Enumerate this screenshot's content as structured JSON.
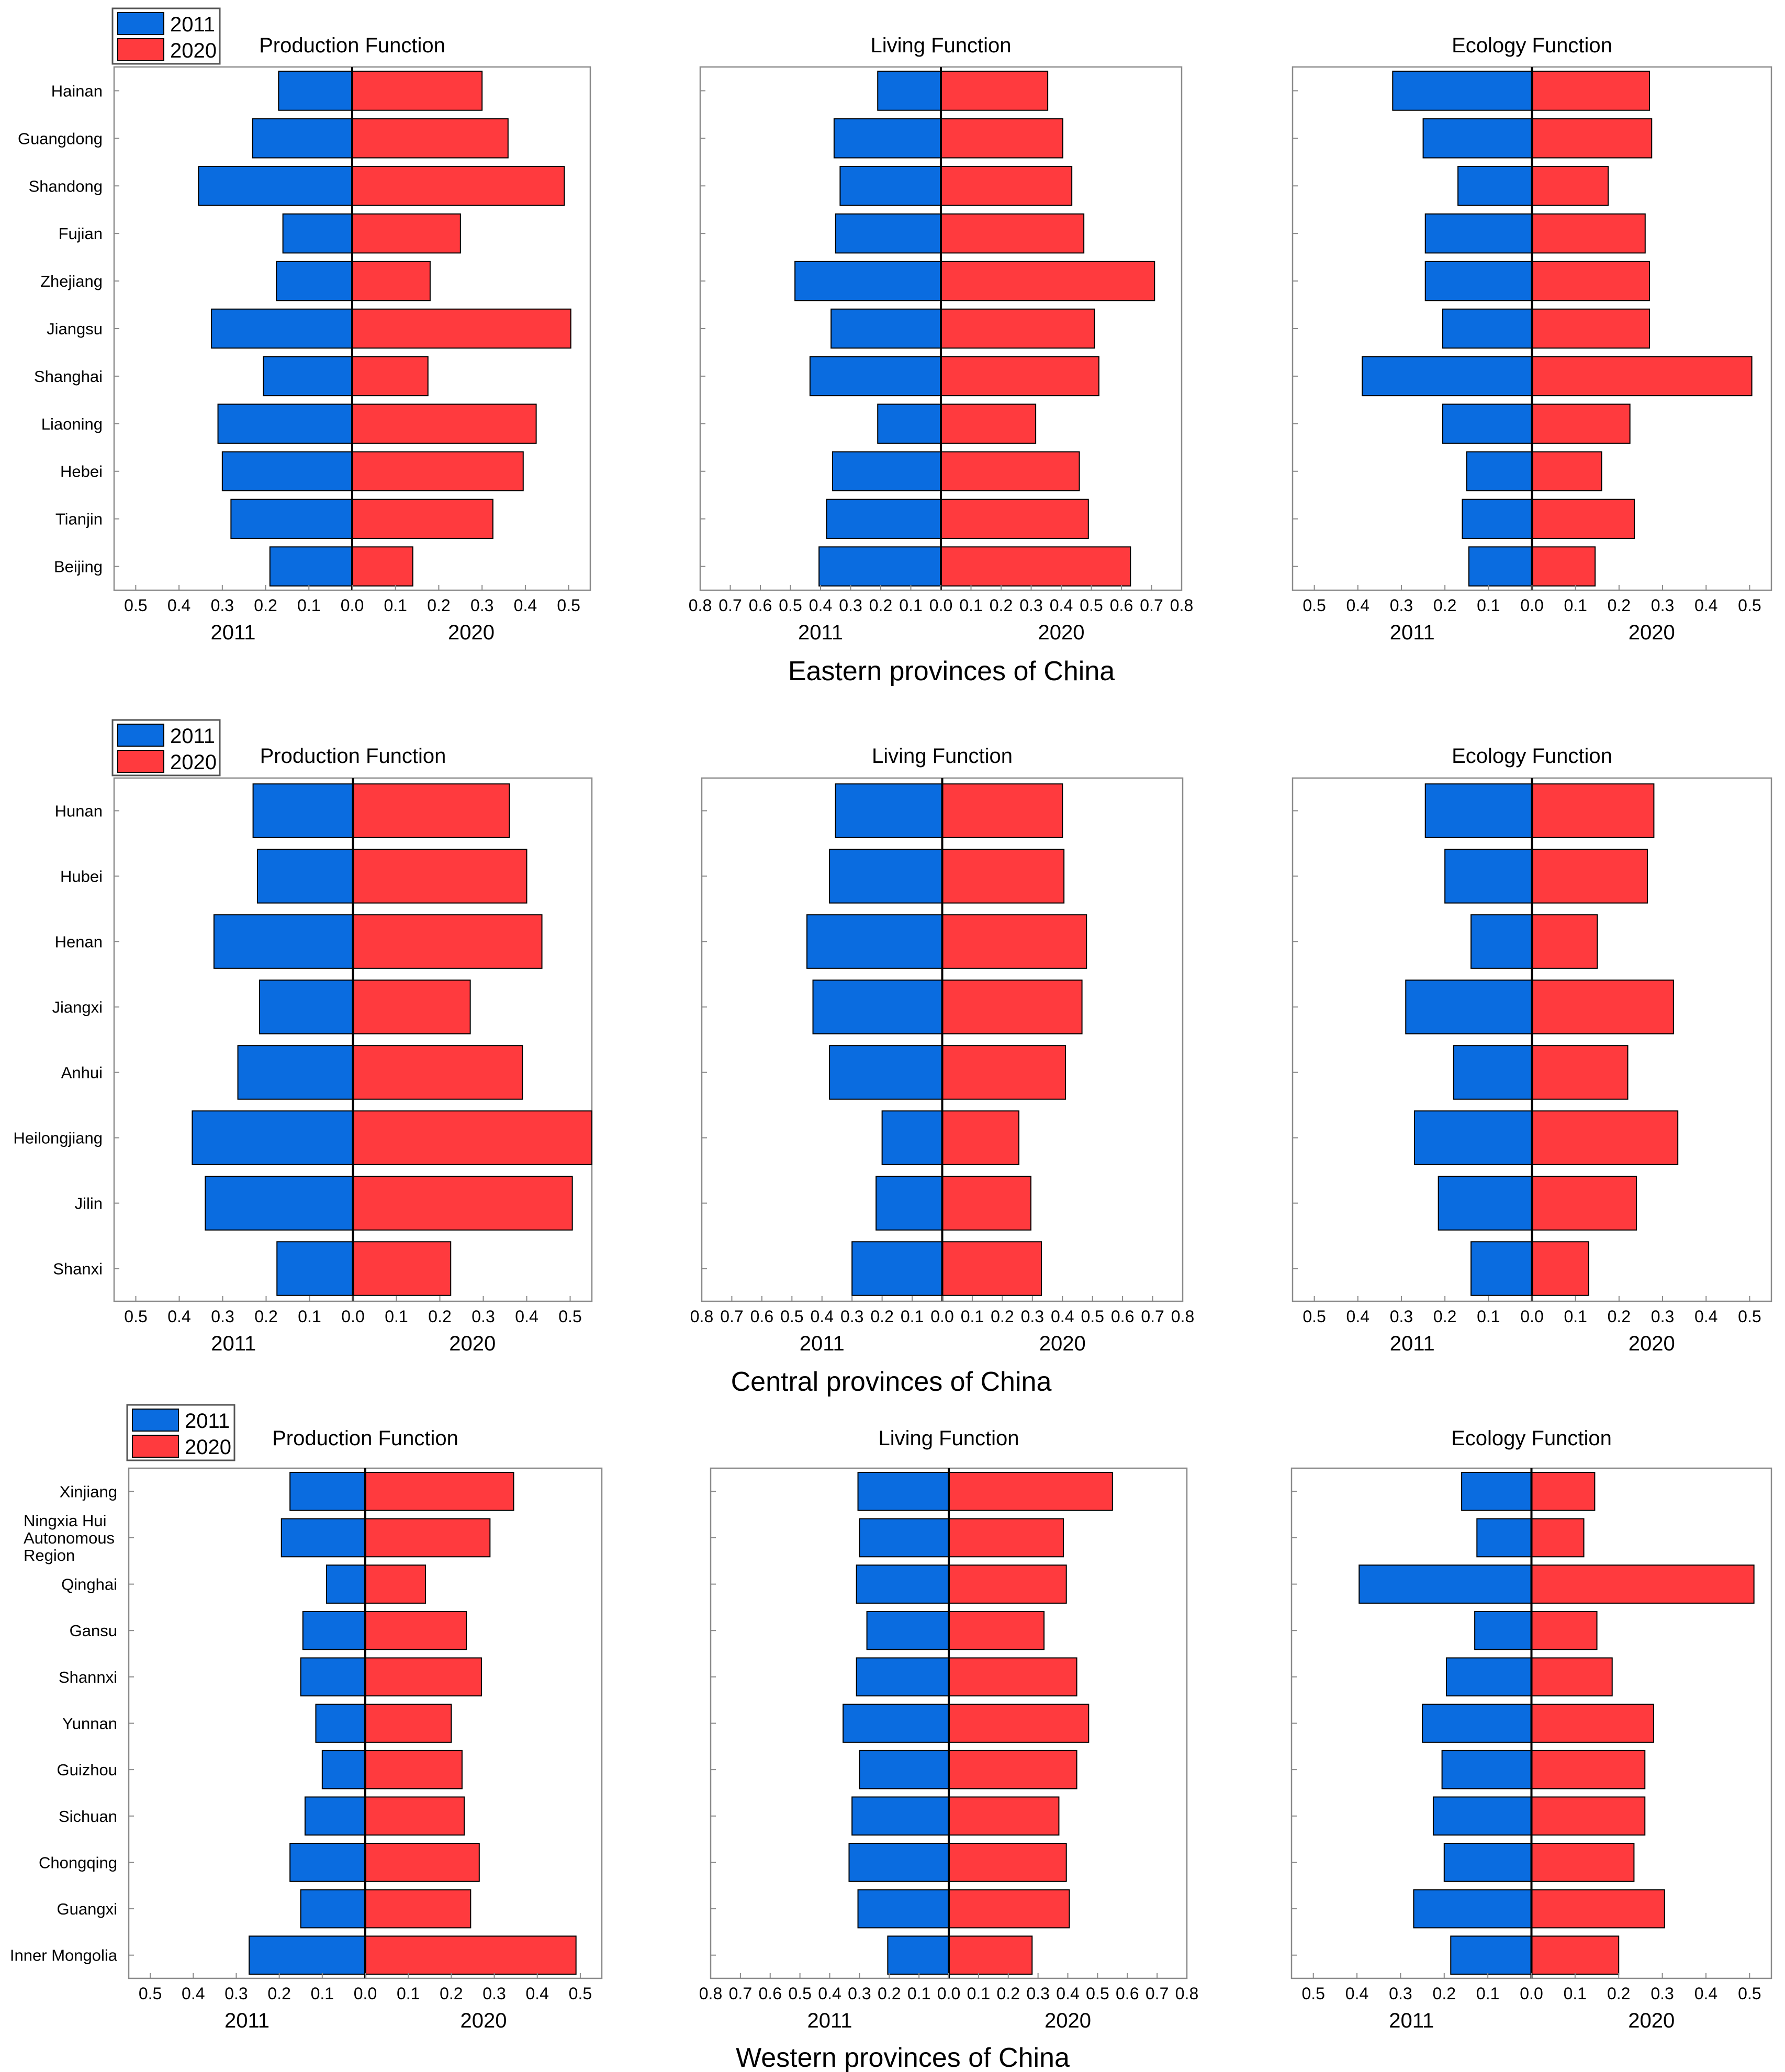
{
  "colors": {
    "y2011": "#0a6ce0",
    "y2020": "#ff3a3e",
    "edge": "#000000"
  },
  "legend": [
    "2011",
    "2020"
  ],
  "year_labels": {
    "left": "2011",
    "right": "2020"
  },
  "panel_titles": [
    "Production Function",
    "Living Function",
    "Ecology Function"
  ],
  "region_titles": [
    "Eastern provinces of China",
    "Central provinces of China",
    "Western provinces of China"
  ],
  "axis_ticks": {
    "production": [
      "0.5",
      "0.4",
      "0.3",
      "0.2",
      "0.1",
      "0.0",
      "0.1",
      "0.2",
      "0.3",
      "0.4",
      "0.5"
    ],
    "living": [
      "0.8",
      "0.7",
      "0.6",
      "0.5",
      "0.4",
      "0.3",
      "0.2",
      "0.1",
      "0.0",
      "0.1",
      "0.2",
      "0.3",
      "0.4",
      "0.5",
      "0.6",
      "0.7",
      "0.8"
    ],
    "ecology": [
      "0.5",
      "0.4",
      "0.3",
      "0.2",
      "0.1",
      "0.0",
      "0.1",
      "0.2",
      "0.3",
      "0.4",
      "0.5"
    ]
  },
  "chart_data": [
    {
      "type": "bar",
      "region": "Eastern provinces of China",
      "title": "Production Function",
      "xlim": [
        -0.55,
        0.55
      ],
      "xlabel_left": "2011",
      "xlabel_right": "2020",
      "categories": [
        "Hainan",
        "Guangdong",
        "Shandong",
        "Fujian",
        "Zhejiang",
        "Jiangsu",
        "Shanghai",
        "Liaoning",
        "Hebei",
        "Tianjin",
        "Beijing"
      ],
      "series": [
        {
          "name": "2011",
          "values": [
            0.17,
            0.23,
            0.355,
            0.16,
            0.175,
            0.325,
            0.205,
            0.31,
            0.3,
            0.28,
            0.19
          ]
        },
        {
          "name": "2020",
          "values": [
            0.3,
            0.36,
            0.49,
            0.25,
            0.18,
            0.505,
            0.175,
            0.425,
            0.395,
            0.325,
            0.14
          ]
        }
      ]
    },
    {
      "type": "bar",
      "region": "Eastern provinces of China",
      "title": "Living Function",
      "xlim": [
        -0.8,
        0.8
      ],
      "xlabel_left": "2011",
      "xlabel_right": "2020",
      "categories": [
        "Hainan",
        "Guangdong",
        "Shandong",
        "Fujian",
        "Zhejiang",
        "Jiangsu",
        "Shanghai",
        "Liaoning",
        "Hebei",
        "Tianjin",
        "Beijing"
      ],
      "series": [
        {
          "name": "2011",
          "values": [
            0.21,
            0.355,
            0.335,
            0.35,
            0.485,
            0.365,
            0.435,
            0.21,
            0.36,
            0.38,
            0.405
          ]
        },
        {
          "name": "2020",
          "values": [
            0.355,
            0.405,
            0.435,
            0.475,
            0.71,
            0.51,
            0.525,
            0.315,
            0.46,
            0.49,
            0.63
          ]
        }
      ]
    },
    {
      "type": "bar",
      "region": "Eastern provinces of China",
      "title": "Ecology Function",
      "xlim": [
        -0.55,
        0.55
      ],
      "xlabel_left": "2011",
      "xlabel_right": "2020",
      "categories": [
        "Hainan",
        "Guangdong",
        "Shandong",
        "Fujian",
        "Zhejiang",
        "Jiangsu",
        "Shanghai",
        "Liaoning",
        "Hebei",
        "Tianjin",
        "Beijing"
      ],
      "series": [
        {
          "name": "2011",
          "values": [
            0.32,
            0.25,
            0.17,
            0.245,
            0.245,
            0.205,
            0.39,
            0.205,
            0.15,
            0.16,
            0.145
          ]
        },
        {
          "name": "2020",
          "values": [
            0.27,
            0.275,
            0.175,
            0.26,
            0.27,
            0.27,
            0.505,
            0.225,
            0.16,
            0.235,
            0.145
          ]
        }
      ]
    },
    {
      "type": "bar",
      "region": "Central provinces of China",
      "title": "Production Function",
      "xlim": [
        -0.55,
        0.55
      ],
      "xlabel_left": "2011",
      "xlabel_right": "2020",
      "categories": [
        "Hunan",
        "Hubei",
        "Henan",
        "Jiangxi",
        "Anhui",
        "Heilongjiang",
        "Jilin",
        "Shanxi"
      ],
      "series": [
        {
          "name": "2011",
          "values": [
            0.23,
            0.22,
            0.32,
            0.215,
            0.265,
            0.37,
            0.34,
            0.175
          ]
        },
        {
          "name": "2020",
          "values": [
            0.36,
            0.4,
            0.435,
            0.27,
            0.39,
            0.555,
            0.505,
            0.225
          ]
        }
      ]
    },
    {
      "type": "bar",
      "region": "Central provinces of China",
      "title": "Living Function",
      "xlim": [
        -0.8,
        0.8
      ],
      "xlabel_left": "2011",
      "xlabel_right": "2020",
      "categories": [
        "Hunan",
        "Hubei",
        "Henan",
        "Jiangxi",
        "Anhui",
        "Heilongjiang",
        "Jilin",
        "Shanxi"
      ],
      "series": [
        {
          "name": "2011",
          "values": [
            0.355,
            0.375,
            0.45,
            0.43,
            0.375,
            0.2,
            0.22,
            0.3
          ]
        },
        {
          "name": "2020",
          "values": [
            0.4,
            0.405,
            0.48,
            0.465,
            0.41,
            0.255,
            0.295,
            0.33
          ]
        }
      ]
    },
    {
      "type": "bar",
      "region": "Central provinces of China",
      "title": "Ecology Function",
      "xlim": [
        -0.55,
        0.55
      ],
      "xlabel_left": "2011",
      "xlabel_right": "2020",
      "categories": [
        "Hunan",
        "Hubei",
        "Henan",
        "Jiangxi",
        "Anhui",
        "Heilongjiang",
        "Jilin",
        "Shanxi"
      ],
      "series": [
        {
          "name": "2011",
          "values": [
            0.245,
            0.2,
            0.14,
            0.29,
            0.18,
            0.27,
            0.215,
            0.14
          ]
        },
        {
          "name": "2020",
          "values": [
            0.28,
            0.265,
            0.15,
            0.325,
            0.22,
            0.335,
            0.24,
            0.13
          ]
        }
      ]
    },
    {
      "type": "bar",
      "region": "Western provinces of China",
      "title": "Production Function",
      "xlim": [
        -0.55,
        0.55
      ],
      "xlabel_left": "2011",
      "xlabel_right": "2020",
      "categories": [
        "Xinjiang",
        "Ningxia Hui Autonomous Region",
        "Qinghai",
        "Gansu",
        "Shannxi",
        "Yunnan",
        "Guizhou",
        "Sichuan",
        "Chongqing",
        "Guangxi",
        "Inner Mongolia"
      ],
      "series": [
        {
          "name": "2011",
          "values": [
            0.175,
            0.195,
            0.09,
            0.145,
            0.15,
            0.115,
            0.1,
            0.14,
            0.175,
            0.15,
            0.27
          ]
        },
        {
          "name": "2020",
          "values": [
            0.345,
            0.29,
            0.14,
            0.235,
            0.27,
            0.2,
            0.225,
            0.23,
            0.265,
            0.245,
            0.49
          ]
        }
      ]
    },
    {
      "type": "bar",
      "region": "Western provinces of China",
      "title": "Living Function",
      "xlim": [
        -0.8,
        0.8
      ],
      "xlabel_left": "2011",
      "xlabel_right": "2020",
      "categories": [
        "Xinjiang",
        "Ningxia Hui Autonomous Region",
        "Qinghai",
        "Gansu",
        "Shannxi",
        "Yunnan",
        "Guizhou",
        "Sichuan",
        "Chongqing",
        "Guangxi",
        "Inner Mongolia"
      ],
      "series": [
        {
          "name": "2011",
          "values": [
            0.305,
            0.3,
            0.31,
            0.275,
            0.31,
            0.355,
            0.3,
            0.325,
            0.335,
            0.305,
            0.205
          ]
        },
        {
          "name": "2020",
          "values": [
            0.55,
            0.385,
            0.395,
            0.32,
            0.43,
            0.47,
            0.43,
            0.37,
            0.395,
            0.405,
            0.28
          ]
        }
      ]
    },
    {
      "type": "bar",
      "region": "Western provinces of China",
      "title": "Ecology Function",
      "xlim": [
        -0.55,
        0.55
      ],
      "xlabel_left": "2011",
      "xlabel_right": "2020",
      "categories": [
        "Xinjiang",
        "Ningxia Hui Autonomous Region",
        "Qinghai",
        "Gansu",
        "Shannxi",
        "Yunnan",
        "Guizhou",
        "Sichuan",
        "Chongqing",
        "Guangxi",
        "Inner Mongolia"
      ],
      "series": [
        {
          "name": "2011",
          "values": [
            0.16,
            0.125,
            0.395,
            0.13,
            0.195,
            0.25,
            0.205,
            0.225,
            0.2,
            0.27,
            0.185
          ]
        },
        {
          "name": "2020",
          "values": [
            0.145,
            0.12,
            0.51,
            0.15,
            0.185,
            0.28,
            0.26,
            0.26,
            0.235,
            0.305,
            0.2
          ]
        }
      ]
    }
  ]
}
